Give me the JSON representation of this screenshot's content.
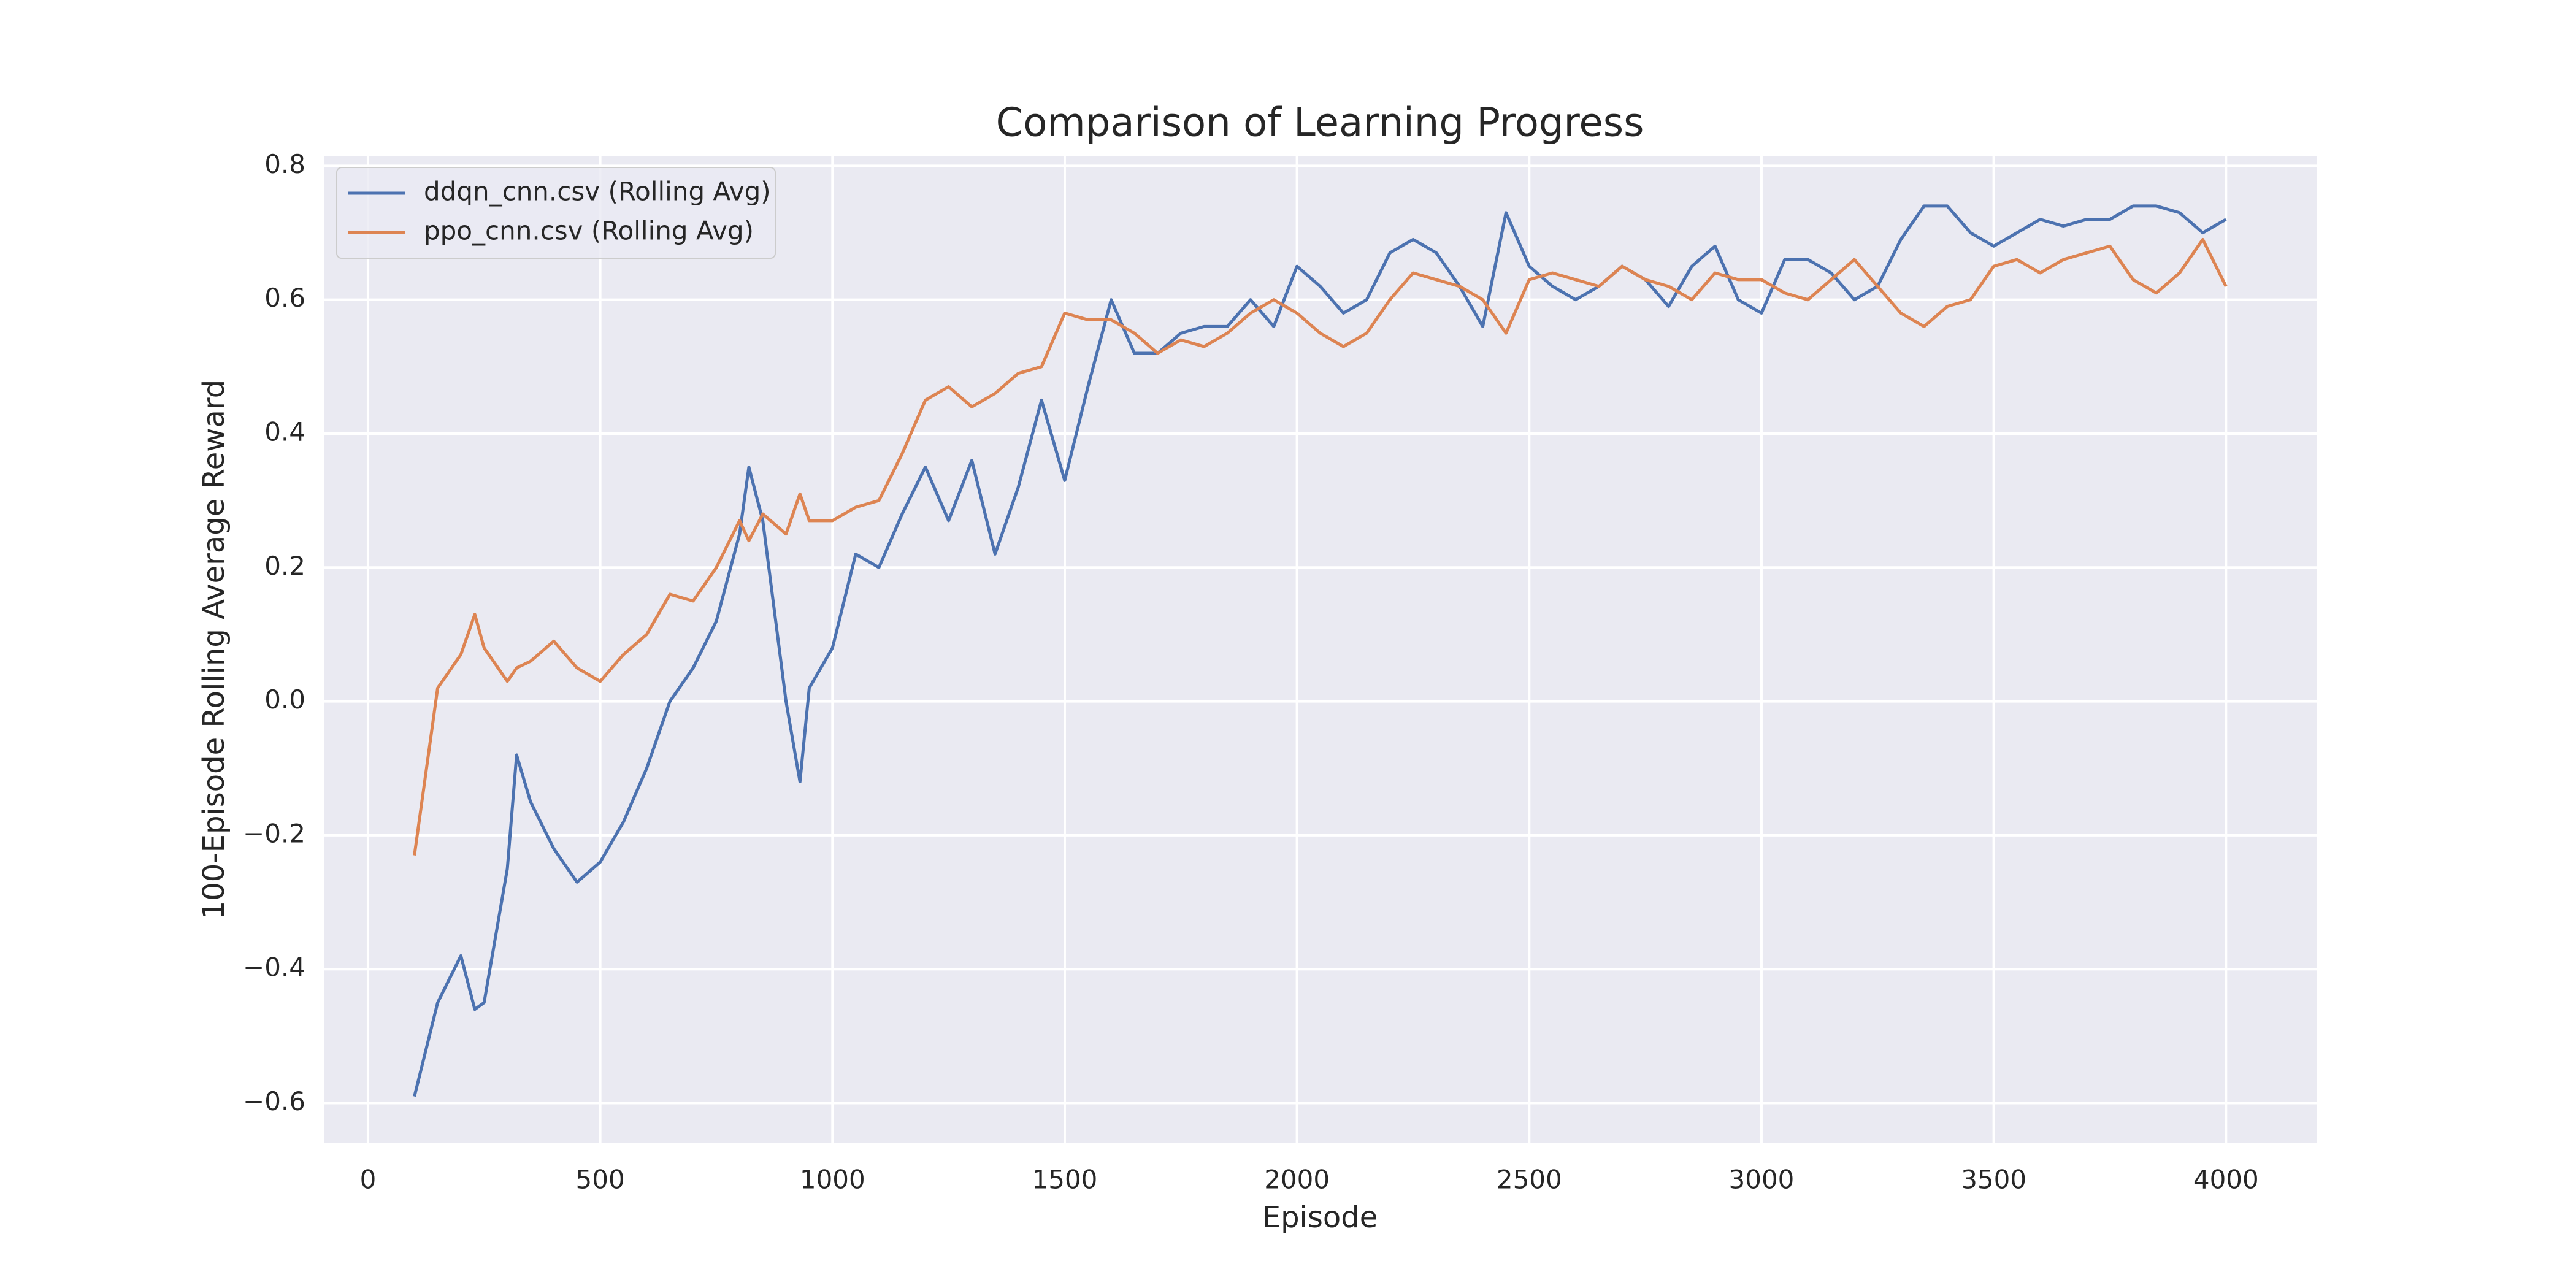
{
  "chart_data": {
    "type": "line",
    "title": "Comparison of Learning Progress",
    "x_label": "Episode",
    "y_label": "100-Episode Rolling Average Reward",
    "x": [
      100,
      150,
      200,
      230,
      250,
      300,
      320,
      350,
      400,
      450,
      500,
      550,
      600,
      650,
      700,
      750,
      800,
      820,
      850,
      900,
      930,
      950,
      1000,
      1050,
      1100,
      1150,
      1200,
      1250,
      1300,
      1350,
      1400,
      1450,
      1500,
      1550,
      1600,
      1650,
      1700,
      1750,
      1800,
      1850,
      1900,
      1950,
      2000,
      2050,
      2100,
      2150,
      2200,
      2250,
      2300,
      2350,
      2400,
      2450,
      2500,
      2550,
      2600,
      2650,
      2700,
      2750,
      2800,
      2850,
      2900,
      2950,
      3000,
      3050,
      3100,
      3150,
      3200,
      3250,
      3300,
      3350,
      3400,
      3450,
      3500,
      3550,
      3600,
      3650,
      3700,
      3750,
      3800,
      3850,
      3900,
      3950,
      4000
    ],
    "series": [
      {
        "name": "ddqn_cnn.csv (Rolling Avg)",
        "color": "#4c72b0",
        "values": [
          -0.59,
          -0.45,
          -0.38,
          -0.46,
          -0.45,
          -0.25,
          -0.08,
          -0.15,
          -0.22,
          -0.27,
          -0.24,
          -0.18,
          -0.1,
          0.0,
          0.05,
          0.12,
          0.25,
          0.35,
          0.27,
          0.0,
          -0.12,
          0.02,
          0.08,
          0.22,
          0.2,
          0.28,
          0.35,
          0.27,
          0.36,
          0.22,
          0.32,
          0.45,
          0.33,
          0.47,
          0.6,
          0.52,
          0.52,
          0.55,
          0.56,
          0.56,
          0.6,
          0.56,
          0.65,
          0.62,
          0.58,
          0.6,
          0.67,
          0.69,
          0.67,
          0.62,
          0.56,
          0.73,
          0.65,
          0.62,
          0.6,
          0.62,
          0.65,
          0.63,
          0.59,
          0.65,
          0.68,
          0.6,
          0.58,
          0.66,
          0.66,
          0.64,
          0.6,
          0.62,
          0.69,
          0.74,
          0.74,
          0.7,
          0.68,
          0.7,
          0.72,
          0.71,
          0.72,
          0.72,
          0.74,
          0.74,
          0.73,
          0.7,
          0.72
        ]
      },
      {
        "name": "ppo_cnn.csv (Rolling Avg)",
        "color": "#dd8452",
        "values": [
          -0.23,
          0.02,
          0.07,
          0.13,
          0.08,
          0.03,
          0.05,
          0.06,
          0.09,
          0.05,
          0.03,
          0.07,
          0.1,
          0.16,
          0.15,
          0.2,
          0.27,
          0.24,
          0.28,
          0.25,
          0.31,
          0.27,
          0.27,
          0.29,
          0.3,
          0.37,
          0.45,
          0.47,
          0.44,
          0.46,
          0.49,
          0.5,
          0.58,
          0.57,
          0.57,
          0.55,
          0.52,
          0.54,
          0.53,
          0.55,
          0.58,
          0.6,
          0.58,
          0.55,
          0.53,
          0.55,
          0.6,
          0.64,
          0.63,
          0.62,
          0.6,
          0.55,
          0.63,
          0.64,
          0.63,
          0.62,
          0.65,
          0.63,
          0.62,
          0.6,
          0.64,
          0.63,
          0.63,
          0.61,
          0.6,
          0.63,
          0.66,
          0.62,
          0.58,
          0.56,
          0.59,
          0.6,
          0.65,
          0.66,
          0.64,
          0.66,
          0.67,
          0.68,
          0.63,
          0.61,
          0.64,
          0.69,
          0.62
        ]
      }
    ],
    "xlim": [
      -95,
      4195
    ],
    "ylim": [
      -0.66,
      0.815
    ],
    "xticks": [
      0,
      500,
      1000,
      1500,
      2000,
      2500,
      3000,
      3500,
      4000
    ],
    "yticks": [
      {
        "value": -0.6,
        "label": "−0.6"
      },
      {
        "value": -0.4,
        "label": "−0.4"
      },
      {
        "value": -0.2,
        "label": "−0.2"
      },
      {
        "value": 0.0,
        "label": "0.0"
      },
      0.2,
      0.4,
      0.6,
      0.8
    ],
    "grid": true,
    "legend": "upper left"
  }
}
